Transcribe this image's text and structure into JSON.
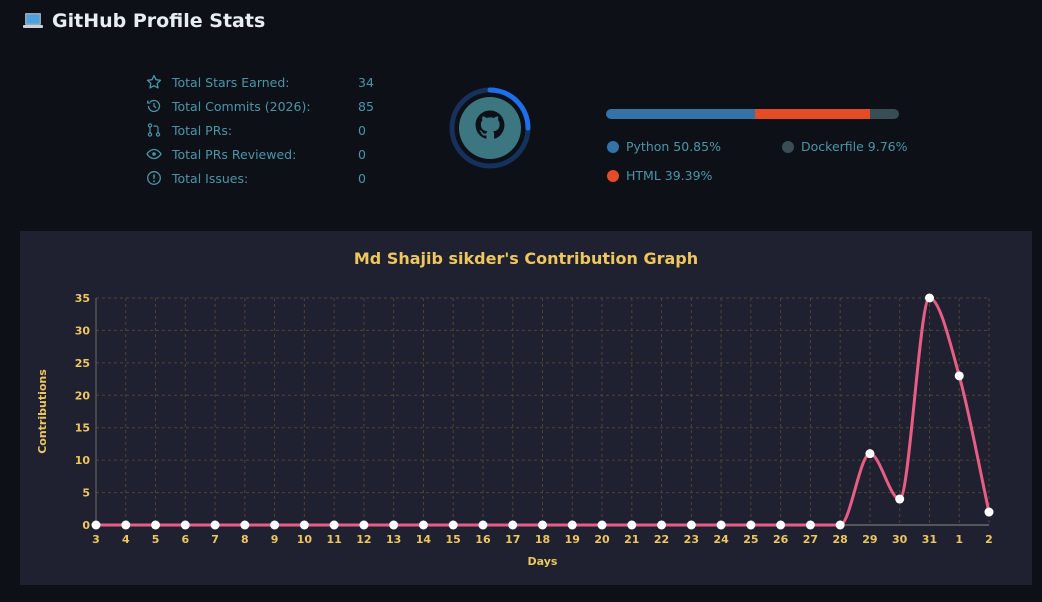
{
  "page": {
    "title": "GitHub Profile Stats"
  },
  "stats": [
    {
      "icon": "star-icon",
      "label": "Total Stars Earned:",
      "value": "34"
    },
    {
      "icon": "history-icon",
      "label": "Total Commits (2026):",
      "value": "85"
    },
    {
      "icon": "pull-request-icon",
      "label": "Total PRs:",
      "value": "0"
    },
    {
      "icon": "eye-icon",
      "label": "Total PRs Reviewed:",
      "value": "0"
    },
    {
      "icon": "issue-icon",
      "label": "Total Issues:",
      "value": "0"
    }
  ],
  "progress_ring": {
    "fraction": 0.25,
    "track_color": "#16325c",
    "progress_color": "#1f6feb",
    "avatar_bg": "#3c7680"
  },
  "languages": [
    {
      "name": "Python",
      "percent_label": "Python 50.85%",
      "percent": 50.85,
      "color": "#3572A5"
    },
    {
      "name": "HTML",
      "percent_label": "HTML 39.39%",
      "percent": 39.39,
      "color": "#e34c26"
    },
    {
      "name": "Dockerfile",
      "percent_label": "Dockerfile 9.76%",
      "percent": 9.76,
      "color": "#384d54"
    }
  ],
  "colors": {
    "background": "#0d1117",
    "panel": "#1f2130",
    "text": "#4a95a8",
    "accent": "#eec65f",
    "line": "#e85d84"
  },
  "chart_data": {
    "type": "line",
    "title": "Md Shajib sikder's Contribution Graph",
    "xlabel": "Days",
    "ylabel": "Contributions",
    "categories": [
      "3",
      "4",
      "5",
      "6",
      "7",
      "8",
      "9",
      "10",
      "11",
      "12",
      "13",
      "14",
      "15",
      "16",
      "17",
      "18",
      "19",
      "20",
      "21",
      "22",
      "23",
      "24",
      "25",
      "26",
      "27",
      "28",
      "29",
      "30",
      "31",
      "1",
      "2"
    ],
    "series": [
      {
        "values": [
          0,
          0,
          0,
          0,
          0,
          0,
          0,
          0,
          0,
          0,
          0,
          0,
          0,
          0,
          0,
          0,
          0,
          0,
          0,
          0,
          0,
          0,
          0,
          0,
          0,
          0,
          11,
          4,
          35,
          23,
          2
        ]
      }
    ],
    "ylim": [
      0,
      35
    ],
    "yticks": [
      0,
      5,
      10,
      15,
      20,
      25,
      30,
      35
    ],
    "grid": true
  }
}
